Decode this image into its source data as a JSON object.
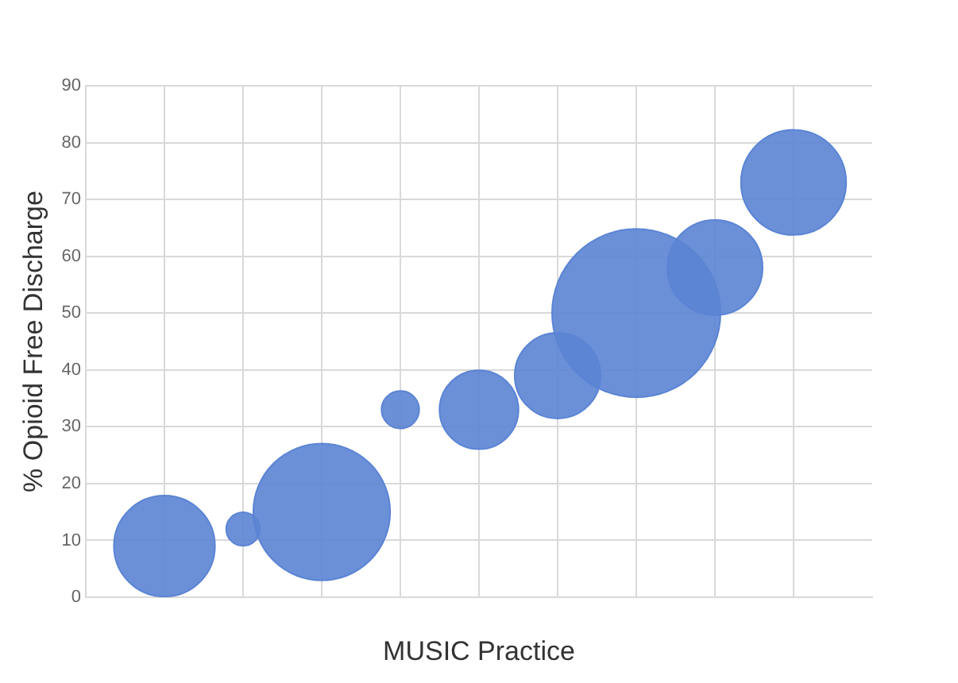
{
  "chart_data": {
    "type": "bubble",
    "xlabel": "MUSIC Practice",
    "ylabel": "% Opioid Free Discharge",
    "categories": [
      null,
      null,
      null,
      null,
      null,
      null,
      null,
      null,
      null
    ],
    "values": [
      9,
      12,
      15,
      33,
      33,
      39,
      50,
      58,
      73
    ],
    "sizes": [
      0.36,
      0.04,
      0.66,
      0.05,
      0.22,
      0.26,
      1,
      0.32,
      0.39
    ],
    "color": "#5b84d4",
    "ylim": [
      0,
      90
    ],
    "yticks": [
      0,
      10,
      20,
      30,
      40,
      50,
      60,
      70,
      80,
      90
    ],
    "grid": true
  }
}
